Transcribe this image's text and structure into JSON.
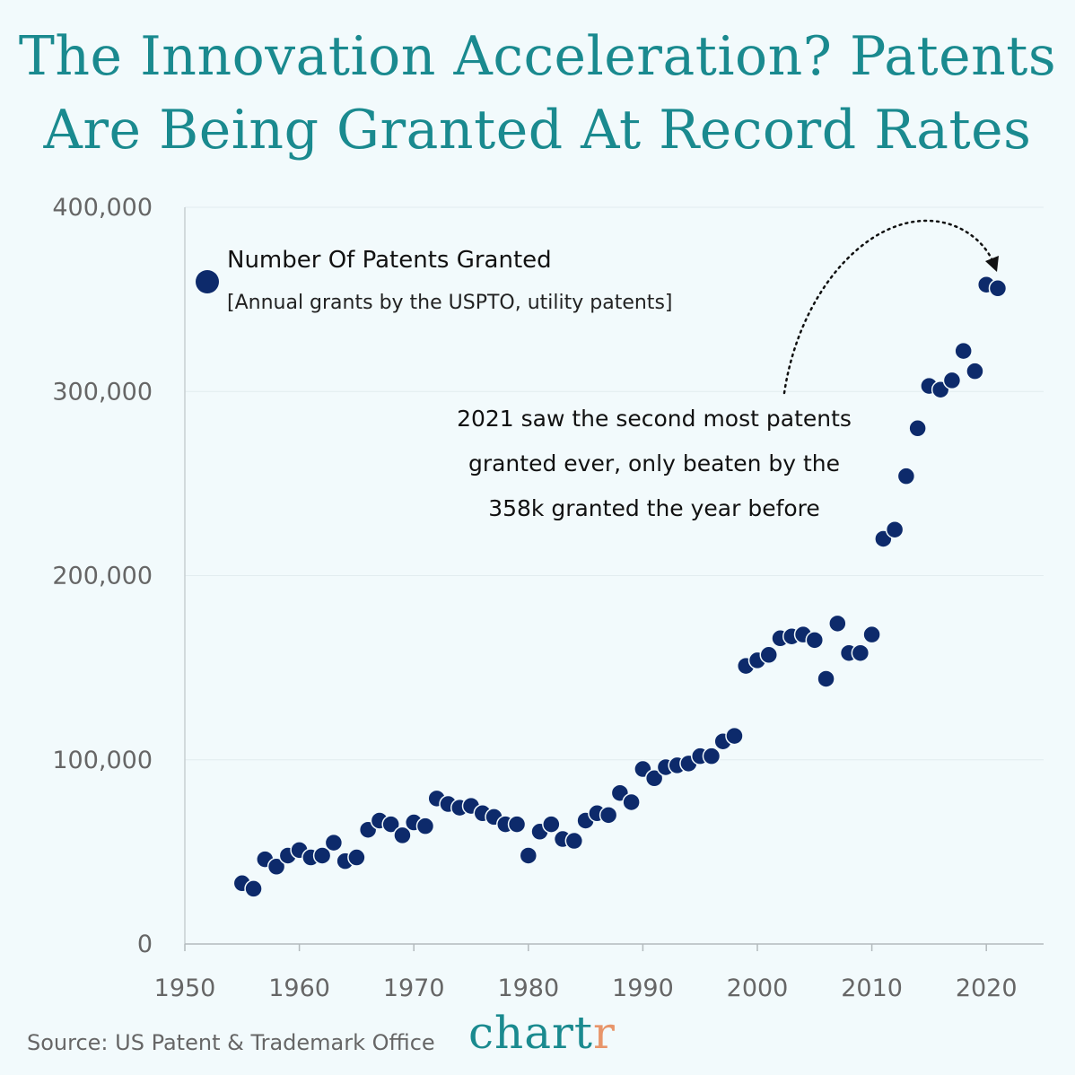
{
  "title": {
    "line1": "The Innovation Acceleration? Patents",
    "line2": "Are Being Granted At Record Rates"
  },
  "chart_data": {
    "type": "scatter",
    "legend": {
      "title": "Number Of Patents Granted",
      "subtitle": "[Annual grants by the USPTO, utility patents]"
    },
    "x_ticks": [
      "1950",
      "1960",
      "1970",
      "1980",
      "1990",
      "2000",
      "2010",
      "2020"
    ],
    "y_ticks": [
      "0",
      "100,000",
      "200,000",
      "300,000",
      "400,000"
    ],
    "xlim": [
      1950,
      2025
    ],
    "ylim": [
      0,
      400000
    ],
    "grid": "horizontal",
    "series": [
      {
        "name": "Number Of Patents Granted",
        "color": "#0d2a6b",
        "x": [
          1955,
          1956,
          1957,
          1958,
          1959,
          1960,
          1961,
          1962,
          1963,
          1964,
          1965,
          1966,
          1967,
          1968,
          1969,
          1970,
          1971,
          1972,
          1973,
          1974,
          1975,
          1976,
          1977,
          1978,
          1979,
          1980,
          1981,
          1982,
          1983,
          1984,
          1985,
          1986,
          1987,
          1988,
          1989,
          1990,
          1991,
          1992,
          1993,
          1994,
          1995,
          1996,
          1997,
          1998,
          1999,
          2000,
          2001,
          2002,
          2003,
          2004,
          2005,
          2006,
          2007,
          2008,
          2009,
          2010,
          2011,
          2012,
          2013,
          2014,
          2015,
          2016,
          2017,
          2018,
          2019,
          2020,
          2021
        ],
        "y": [
          33000,
          30000,
          46000,
          42000,
          48000,
          51000,
          47000,
          48000,
          55000,
          45000,
          47000,
          62000,
          67000,
          65000,
          59000,
          66000,
          64000,
          79000,
          76000,
          74000,
          75000,
          71000,
          69000,
          65000,
          65000,
          48000,
          61000,
          65000,
          57000,
          56000,
          67000,
          71000,
          70000,
          82000,
          77000,
          95000,
          90000,
          96000,
          97000,
          98000,
          102000,
          102000,
          110000,
          113000,
          151000,
          154000,
          157000,
          166000,
          167000,
          168000,
          165000,
          144000,
          174000,
          158000,
          158000,
          168000,
          220000,
          225000,
          254000,
          280000,
          303000,
          301000,
          306000,
          322000,
          311000,
          358000,
          356000
        ]
      }
    ],
    "annotation": {
      "lines": [
        "2021 saw the second most patents",
        "granted ever, only beaten by the",
        "358k granted the year before"
      ]
    }
  },
  "footer": {
    "source": "Source: US Patent & Trademark Office",
    "brand_main": "chart",
    "brand_accent": "r",
    "accent_color": "#e8956a",
    "title_color": "#1a8a8f"
  }
}
